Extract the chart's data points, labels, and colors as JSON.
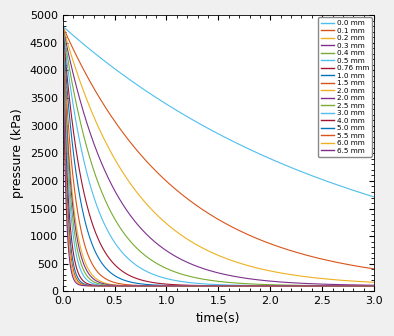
{
  "xlabel": "time(s)",
  "ylabel": "pressure (kPa)",
  "xlim": [
    0,
    3
  ],
  "ylim": [
    0,
    5000
  ],
  "xticks": [
    0,
    0.5,
    1,
    1.5,
    2,
    2.5,
    3
  ],
  "yticks": [
    0,
    500,
    1000,
    1500,
    2000,
    2500,
    3000,
    3500,
    4000,
    4500,
    5000
  ],
  "series": [
    {
      "label": "0.0 mm",
      "tau": 2.8,
      "color": "#4DBEEE"
    },
    {
      "label": "0.1 mm",
      "tau": 1.1,
      "color": "#D95319"
    },
    {
      "label": "0.2 mm",
      "tau": 0.7,
      "color": "#EDB120"
    },
    {
      "label": "0.3 mm",
      "tau": 0.5,
      "color": "#7E2F8E"
    },
    {
      "label": "0.4 mm",
      "tau": 0.37,
      "color": "#77AC30"
    },
    {
      "label": "0.5 mm",
      "tau": 0.28,
      "color": "#4DBEEE"
    },
    {
      "label": "0.76 mm",
      "tau": 0.2,
      "color": "#A2142F"
    },
    {
      "label": "1.0 mm",
      "tau": 0.155,
      "color": "#0072BD"
    },
    {
      "label": "1.5 mm",
      "tau": 0.115,
      "color": "#D95319"
    },
    {
      "label": "2.0 mm",
      "tau": 0.09,
      "color": "#EDB120"
    },
    {
      "label": "2.0 mm",
      "tau": 0.082,
      "color": "#7E2F8E"
    },
    {
      "label": "2.5 mm",
      "tau": 0.072,
      "color": "#77AC30"
    },
    {
      "label": "3.0 mm",
      "tau": 0.062,
      "color": "#4DBEEE"
    },
    {
      "label": "4.0 mm",
      "tau": 0.05,
      "color": "#A2142F"
    },
    {
      "label": "5.0 mm",
      "tau": 0.042,
      "color": "#0072BD"
    },
    {
      "label": "5.5 mm",
      "tau": 0.037,
      "color": "#D95319"
    },
    {
      "label": "6.0 mm",
      "tau": 0.033,
      "color": "#EDB120"
    },
    {
      "label": "6.5 mm",
      "tau": 0.029,
      "color": "#7E2F8E"
    }
  ],
  "p0": 4800,
  "patm": 101.325,
  "figsize": [
    3.94,
    3.36
  ],
  "dpi": 100
}
